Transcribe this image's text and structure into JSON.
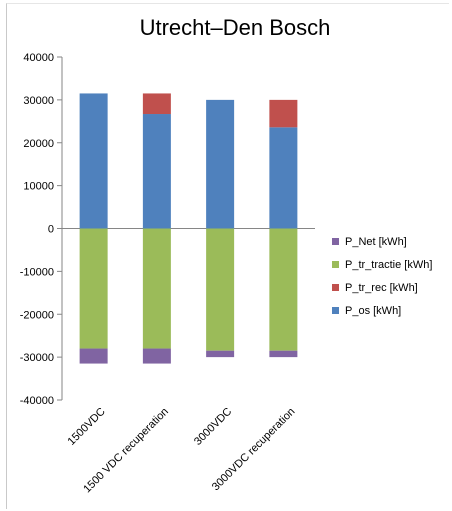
{
  "chart_data": {
    "type": "bar",
    "stacked": true,
    "title": "Utrecht–Den Bosch",
    "xlabel": "",
    "ylabel": "",
    "ylim": [
      -40000,
      40000
    ],
    "yticks": [
      40000,
      30000,
      20000,
      10000,
      0,
      -10000,
      -20000,
      -30000,
      -40000
    ],
    "grid": false,
    "legend_position": "right",
    "categories": [
      "1500VDC",
      "1500 VDC recuperation",
      "3000VDC",
      "3000VDC recuperation"
    ],
    "series": [
      {
        "name": "P_os [kWh]",
        "color": "#4f81bd",
        "values": [
          31500,
          26700,
          30000,
          23600
        ]
      },
      {
        "name": "P_tr_rec [kWh]",
        "color": "#c0504d",
        "values": [
          0,
          4800,
          0,
          6400
        ]
      },
      {
        "name": "P_tr_tractie [kWh]",
        "color": "#9bbb59",
        "values": [
          -28000,
          -28000,
          -28500,
          -28500
        ]
      },
      {
        "name": "P_Net [kWh]",
        "color": "#8064a2",
        "values": [
          -3500,
          -3500,
          -1500,
          -1500
        ]
      }
    ],
    "legend_order": [
      "P_Net [kWh]",
      "P_tr_tractie [kWh]",
      "P_tr_rec [kWh]",
      "P_os [kWh]"
    ]
  }
}
